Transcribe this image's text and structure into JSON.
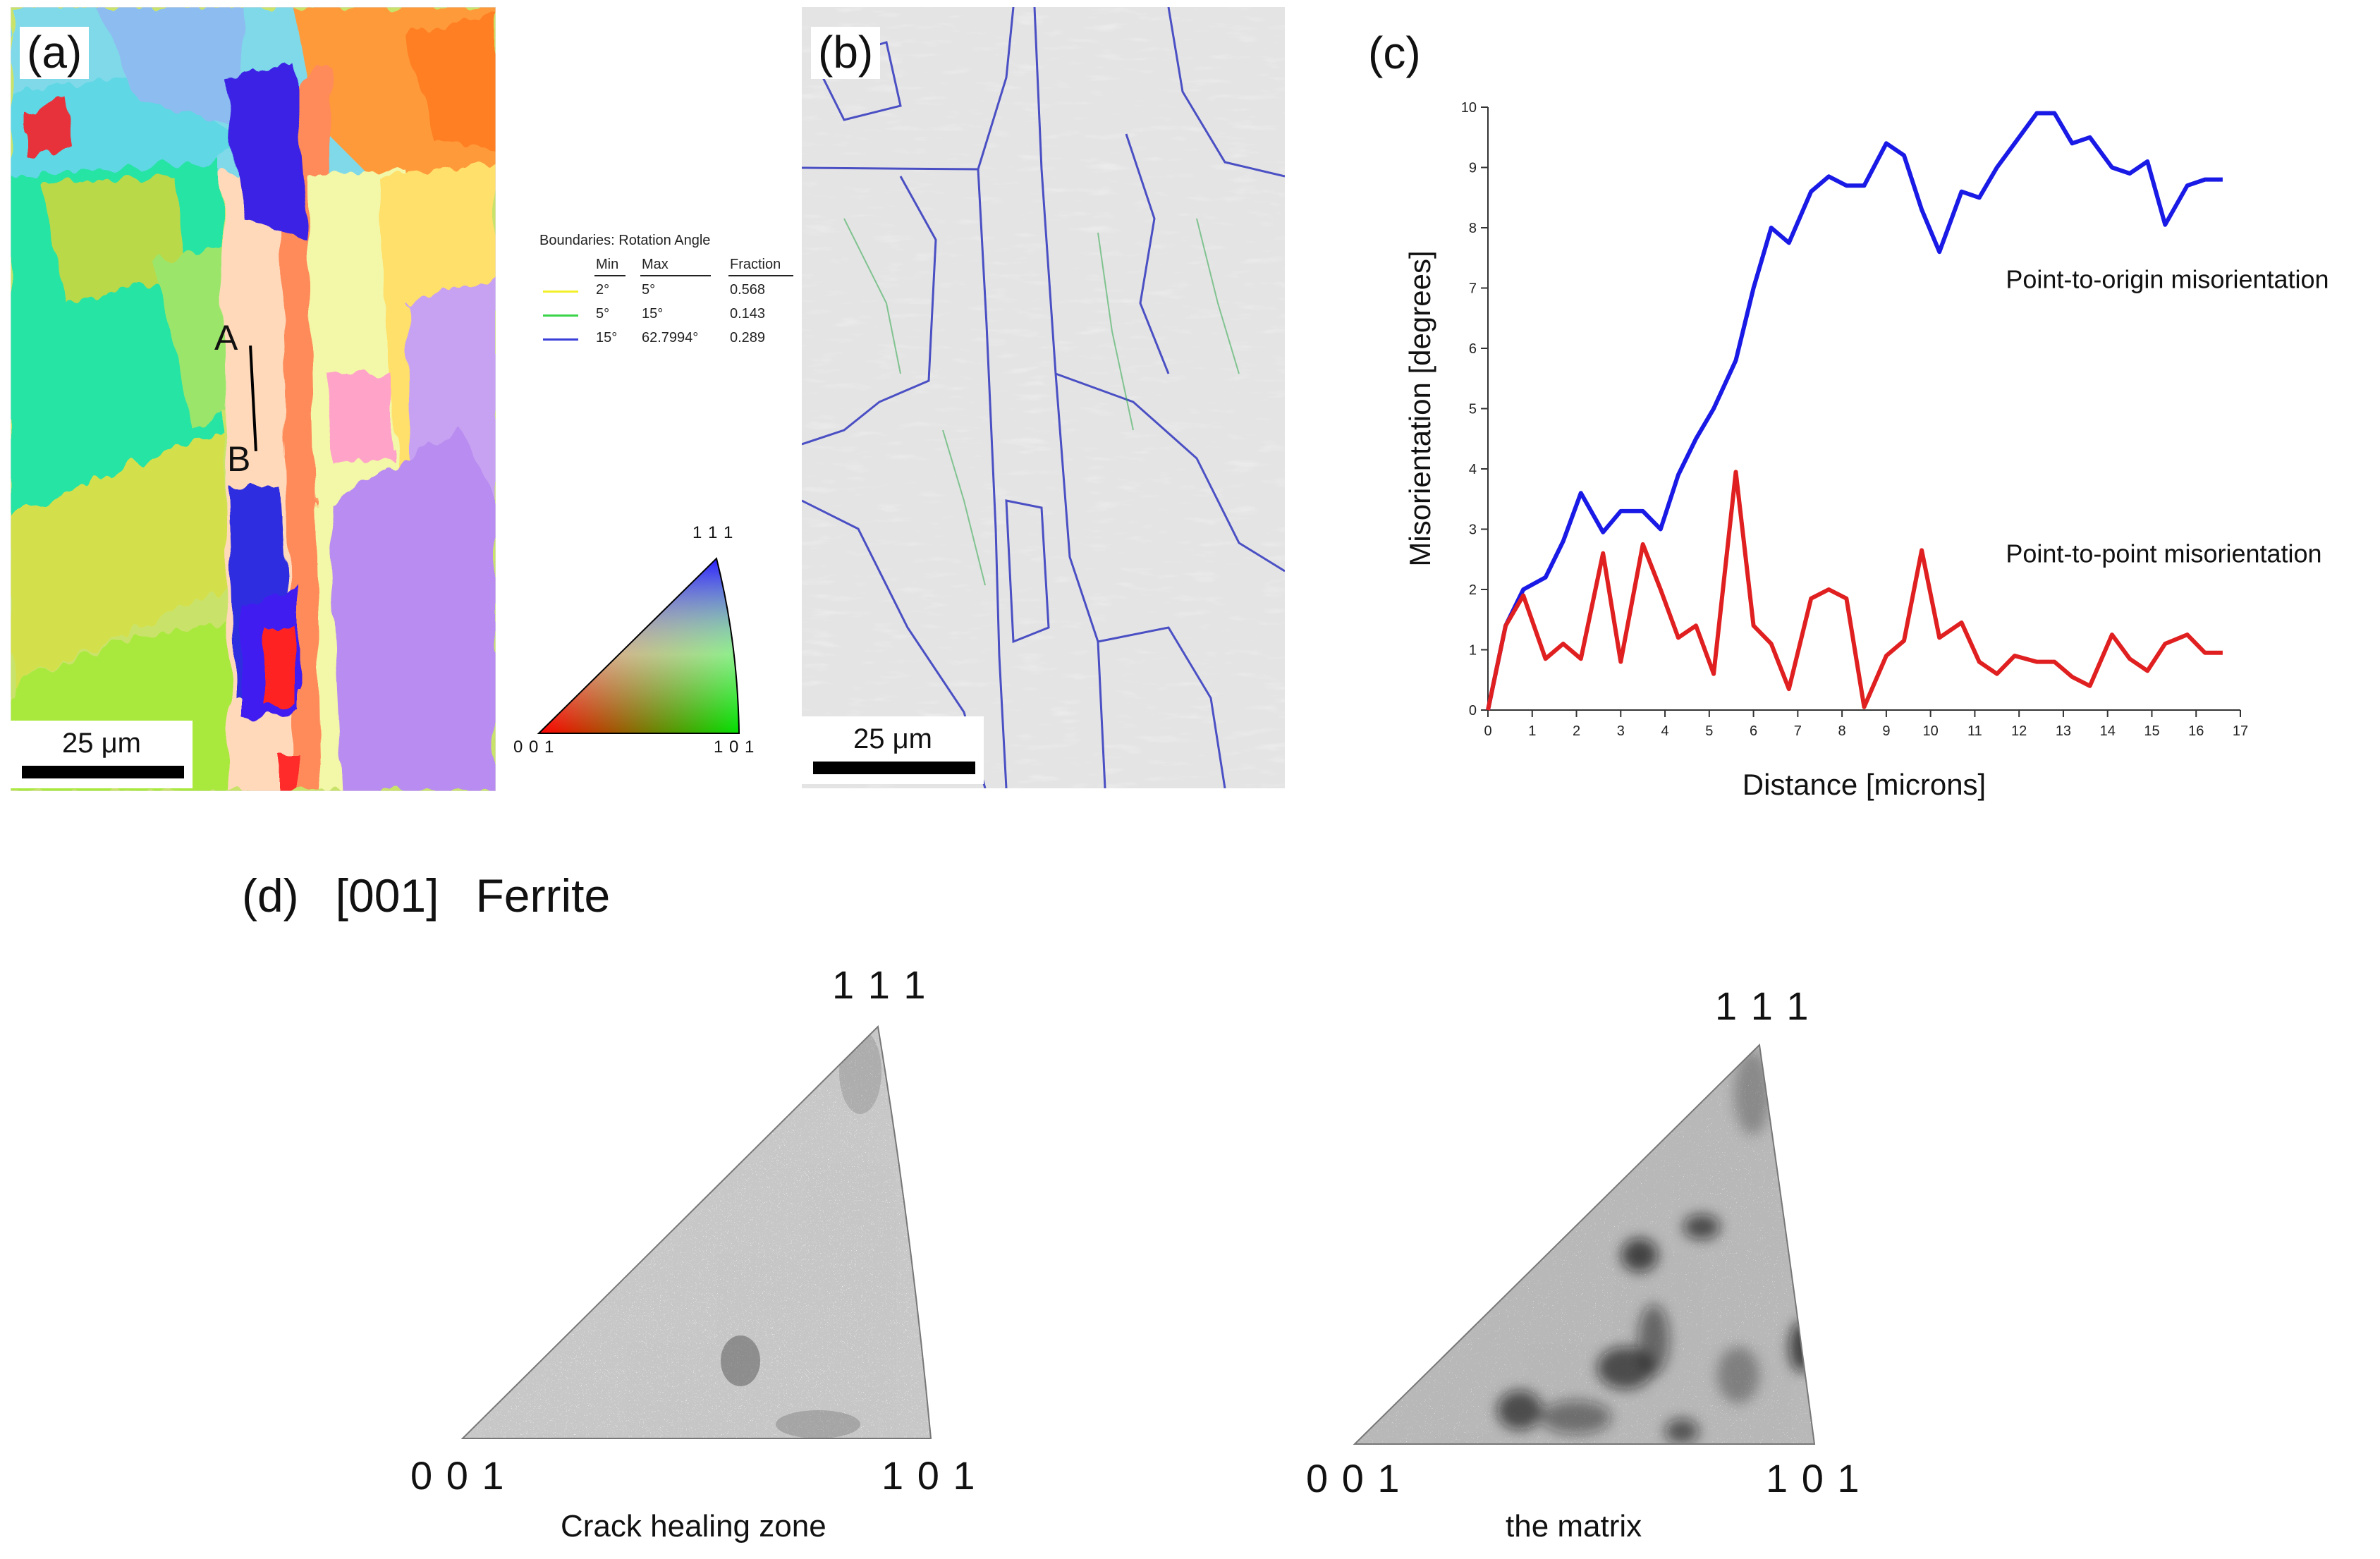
{
  "panels": {
    "a": {
      "label": "(a)",
      "scale": "25 μm",
      "point_a": "A",
      "point_b": "B",
      "legend": {
        "title": "Boundaries: Rotation Angle",
        "headers": {
          "min": "Min",
          "max": "Max",
          "fraction": "Fraction"
        },
        "rows": [
          {
            "min": "2°",
            "max": "5°",
            "fraction": "0.568",
            "color": "#f2ee2a"
          },
          {
            "min": "5°",
            "max": "15°",
            "fraction": "0.143",
            "color": "#39d44a"
          },
          {
            "min": "15°",
            "max": "62.7994°",
            "fraction": "0.289",
            "color": "#3a3fd8"
          }
        ]
      },
      "key_triangle": {
        "top": "1 1 1",
        "left": "0 0 1",
        "right": "1 0 1"
      }
    },
    "b": {
      "label": "(b)",
      "scale": "25 μm"
    },
    "c": {
      "label": "(c)",
      "series_labels": {
        "origin": "Point-to-origin misorientation",
        "point": "Point-to-point misorientation"
      }
    },
    "d": {
      "label": "(d)",
      "direction": "[001]",
      "phase": "Ferrite",
      "triangles": [
        {
          "top": "1 1 1",
          "left": "0 0 1",
          "right": "1 0 1",
          "caption": "Crack healing zone"
        },
        {
          "top": "1 1 1",
          "left": "0 0 1",
          "right": "1 0 1",
          "caption": "the matrix"
        }
      ]
    }
  },
  "chart_data": {
    "type": "line",
    "title": "",
    "xlabel": "Distance [microns]",
    "ylabel": "Misorientation [degrees]",
    "xlim": [
      0,
      17
    ],
    "ylim": [
      0,
      10
    ],
    "xticks": [
      0,
      1,
      2,
      3,
      4,
      5,
      6,
      7,
      8,
      9,
      10,
      11,
      12,
      13,
      14,
      15,
      16,
      17
    ],
    "yticks": [
      0,
      1,
      2,
      3,
      4,
      5,
      6,
      7,
      8,
      9,
      10
    ],
    "series": [
      {
        "name": "Point-to-origin misorientation",
        "color": "#1a1ae6",
        "x": [
          0,
          0.4,
          0.8,
          1.3,
          1.7,
          2.1,
          2.6,
          3.0,
          3.5,
          3.9,
          4.3,
          4.7,
          5.1,
          5.6,
          6.0,
          6.4,
          6.8,
          7.3,
          7.7,
          8.1,
          8.5,
          9.0,
          9.4,
          9.8,
          10.2,
          10.7,
          11.1,
          11.5,
          11.9,
          12.4,
          12.8,
          13.2,
          13.6,
          14.1,
          14.5,
          14.9,
          15.3,
          15.8,
          16.2,
          16.6
        ],
        "values": [
          0,
          1.4,
          2.0,
          2.2,
          2.8,
          3.6,
          2.95,
          3.3,
          3.3,
          3.0,
          3.9,
          4.5,
          5.0,
          5.8,
          7.0,
          8.0,
          7.75,
          8.6,
          8.85,
          8.7,
          8.7,
          9.4,
          9.2,
          8.3,
          7.6,
          8.6,
          8.5,
          9.0,
          9.4,
          9.9,
          9.9,
          9.4,
          9.5,
          9.0,
          8.9,
          9.1,
          8.05,
          8.7,
          8.8,
          8.8
        ]
      },
      {
        "name": "Point-to-point misorientation",
        "color": "#e02020",
        "x": [
          0,
          0.4,
          0.8,
          1.3,
          1.7,
          2.1,
          2.6,
          3.0,
          3.5,
          3.9,
          4.3,
          4.7,
          5.1,
          5.6,
          6.0,
          6.4,
          6.8,
          7.3,
          7.7,
          8.1,
          8.5,
          9.0,
          9.4,
          9.8,
          10.2,
          10.7,
          11.1,
          11.5,
          11.9,
          12.4,
          12.8,
          13.2,
          13.6,
          14.1,
          14.5,
          14.9,
          15.3,
          15.8,
          16.2,
          16.6
        ],
        "values": [
          0,
          1.4,
          1.9,
          0.85,
          1.1,
          0.85,
          2.6,
          0.8,
          2.75,
          2.0,
          1.2,
          1.4,
          0.6,
          3.95,
          1.4,
          1.1,
          0.35,
          1.85,
          2.0,
          1.85,
          0.05,
          0.9,
          1.15,
          2.65,
          1.2,
          1.45,
          0.8,
          0.6,
          0.9,
          0.8,
          0.8,
          0.55,
          0.4,
          1.25,
          0.85,
          0.65,
          1.1,
          1.25,
          0.95,
          0.95
        ]
      }
    ]
  }
}
